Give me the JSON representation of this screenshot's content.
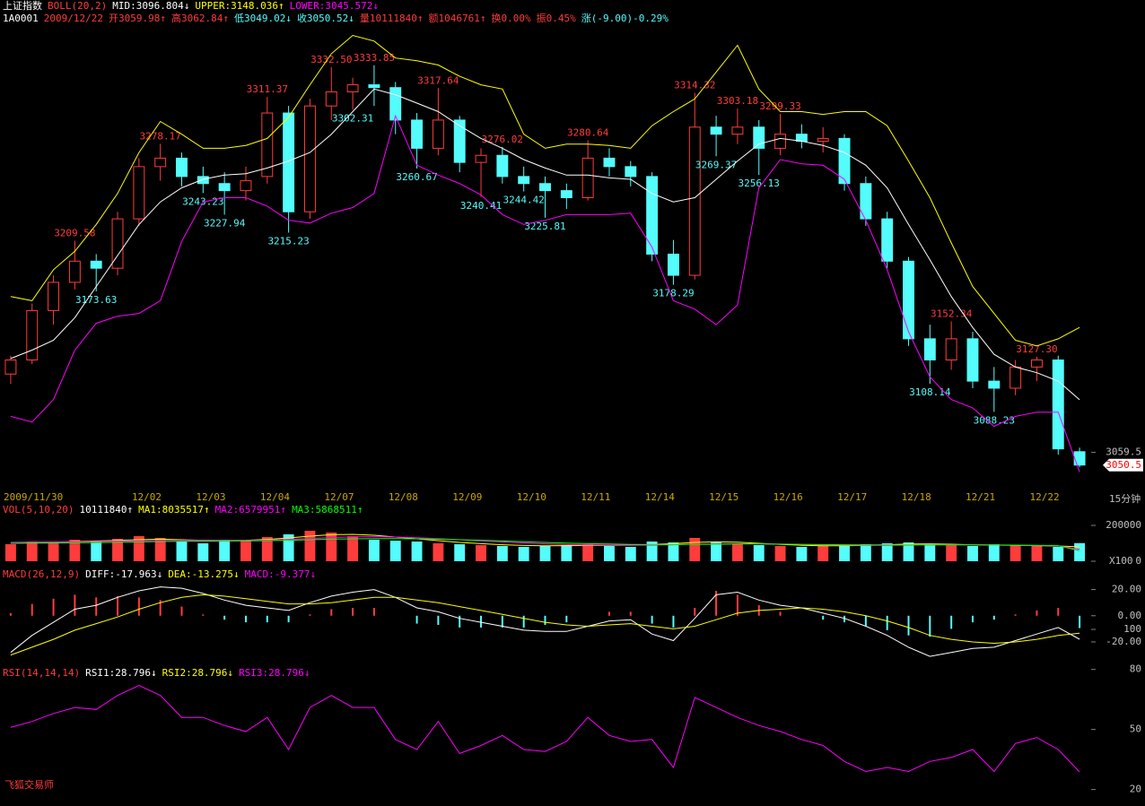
{
  "footer": "飞狐交易师",
  "chart_data": [
    {
      "type": "candlestick",
      "header": [
        [
          {
            "text": "上证指数",
            "color": "#ffffff"
          },
          {
            "text": "BOLL(20,2)",
            "color": "#ff3c3c"
          },
          {
            "text": "MID:3096.804↓",
            "color": "#ffffff"
          },
          {
            "text": "UPPER:3148.036↑",
            "color": "#ffff00"
          },
          {
            "text": "LOWER:3045.572↓",
            "color": "#ff00ff"
          }
        ],
        [
          {
            "text": "1A0001",
            "color": "#ffffff"
          },
          {
            "text": "2009/12/22",
            "color": "#ff3c3c"
          },
          {
            "text": "开3059.98↑",
            "color": "#ff3c3c"
          },
          {
            "text": "高3062.84↑",
            "color": "#ff3c3c"
          },
          {
            "text": "低3049.02↓",
            "color": "#54fcfc"
          },
          {
            "text": "收3050.52↓",
            "color": "#54fcfc"
          },
          {
            "text": "量10111840↑",
            "color": "#ff3c3c"
          },
          {
            "text": "额1046761↑",
            "color": "#ff3c3c"
          },
          {
            "text": "换0.00%",
            "color": "#ff3c3c"
          },
          {
            "text": "振0.45%",
            "color": "#ff3c3c"
          },
          {
            "text": "涨(-9.00)-0.29%",
            "color": "#54fcfc"
          }
        ]
      ],
      "categories": [
        "2009/11/30",
        null,
        null,
        null,
        null,
        null,
        "12/02",
        null,
        null,
        "12/03",
        null,
        null,
        "12/04",
        null,
        null,
        "12/07",
        null,
        null,
        "12/08",
        null,
        null,
        "12/09",
        null,
        null,
        "12/10",
        null,
        null,
        "12/11",
        null,
        null,
        "12/14",
        null,
        null,
        "12/15",
        null,
        null,
        "12/16",
        null,
        null,
        "12/17",
        null,
        null,
        "12/18",
        null,
        null,
        "12/21",
        null,
        null,
        "12/22",
        null,
        null
      ],
      "x_unit_label": "15分钟",
      "up_color": "#ff3c3c",
      "down_color": "#54fcfc",
      "open": [
        3115,
        3125,
        3160,
        3180,
        3195,
        3190,
        3225,
        3262,
        3268,
        3255,
        3250,
        3245,
        3255,
        3300,
        3230,
        3305,
        3315,
        3320,
        3318,
        3295,
        3275,
        3295,
        3265,
        3270,
        3255,
        3250,
        3245,
        3240,
        3268,
        3262,
        3255,
        3200,
        3185,
        3290,
        3285,
        3290,
        3275,
        3285,
        3280,
        3282,
        3250,
        3225,
        3195,
        3140,
        3125,
        3140,
        3110,
        3105,
        3120,
        3125,
        3059.98
      ],
      "high": [
        3128,
        3165,
        3185,
        3209.58,
        3200,
        3230,
        3268,
        3278.17,
        3272,
        3262,
        3258,
        3262,
        3311.37,
        3305,
        3310,
        3332.5,
        3325,
        3333.85,
        3322,
        3300,
        3317.64,
        3298,
        3275,
        3276.02,
        3262,
        3255,
        3250,
        3280.64,
        3275,
        3266,
        3258,
        3210,
        3314.32,
        3298,
        3303.18,
        3295,
        3299.33,
        3292,
        3290,
        3285,
        3255,
        3230,
        3198,
        3150,
        3152.34,
        3145,
        3120,
        3125,
        3127.3,
        3128,
        3062.84
      ],
      "low": [
        3108,
        3122,
        3150,
        3175,
        3173.63,
        3185,
        3220,
        3252,
        3248,
        3243.23,
        3227.94,
        3238,
        3250,
        3215.23,
        3225,
        3295,
        3302.31,
        3305,
        3285,
        3260.67,
        3270,
        3258,
        3240.41,
        3250,
        3244.42,
        3225.81,
        3232,
        3238,
        3255,
        3248,
        3195,
        3178.29,
        3182,
        3269.37,
        3278,
        3256.13,
        3270,
        3275,
        3272,
        3245,
        3220,
        3190,
        3135,
        3108.14,
        3118,
        3105,
        3088.23,
        3100,
        3110,
        3058,
        3049.02
      ],
      "close": [
        3125,
        3160,
        3180,
        3195,
        3190,
        3225,
        3262,
        3268,
        3255,
        3250,
        3245,
        3252,
        3300,
        3230,
        3305,
        3315,
        3320,
        3318,
        3295,
        3275,
        3295,
        3265,
        3270,
        3255,
        3250,
        3245,
        3240,
        3268,
        3262,
        3255,
        3200,
        3185,
        3290,
        3285,
        3290,
        3275,
        3285,
        3280,
        3282,
        3250,
        3225,
        3195,
        3140,
        3125,
        3140,
        3110,
        3105,
        3120,
        3125,
        3062,
        3050.52
      ],
      "high_labels": [
        null,
        null,
        null,
        "3209.58",
        null,
        null,
        null,
        "3278.17",
        null,
        null,
        null,
        null,
        "3311.37",
        null,
        null,
        "3332.50",
        null,
        "3333.85",
        null,
        null,
        "3317.64",
        null,
        null,
        "3276.02",
        null,
        null,
        null,
        "3280.64",
        null,
        null,
        null,
        null,
        "3314.32",
        null,
        "3303.18",
        null,
        "3299.33",
        null,
        null,
        null,
        null,
        null,
        null,
        null,
        "3152.34",
        null,
        null,
        null,
        "3127.30",
        null,
        null
      ],
      "low_labels": [
        null,
        null,
        null,
        null,
        "3173.63",
        null,
        null,
        null,
        null,
        "3243.23",
        "3227.94",
        null,
        null,
        "3215.23",
        null,
        null,
        "3302.31",
        null,
        null,
        "3260.67",
        null,
        null,
        "3240.41",
        null,
        "3244.42",
        "3225.81",
        null,
        null,
        null,
        null,
        null,
        "3178.29",
        null,
        "3269.37",
        null,
        "3256.13",
        null,
        null,
        null,
        null,
        null,
        null,
        null,
        "3108.14",
        null,
        null,
        "3088.23",
        null,
        null,
        null,
        null
      ],
      "series": [
        {
          "color": "#ffffff",
          "values": [
            3126,
            3132,
            3139,
            3155,
            3177,
            3199,
            3221,
            3237,
            3247,
            3253,
            3256,
            3257,
            3261,
            3266,
            3272,
            3285,
            3301,
            3317,
            3313,
            3307,
            3301,
            3291,
            3282,
            3275,
            3267,
            3261,
            3256,
            3256,
            3254,
            3253,
            3243,
            3237,
            3240,
            3253,
            3266,
            3278,
            3282,
            3280,
            3277,
            3272,
            3263,
            3247,
            3221,
            3196,
            3170,
            3148,
            3129,
            3120,
            3116,
            3110,
            3096.804
          ]
        },
        {
          "color": "#ffff00",
          "values": [
            3170,
            3167,
            3189,
            3202,
            3221,
            3243,
            3272,
            3294,
            3285,
            3275,
            3275,
            3277,
            3282,
            3297,
            3320,
            3342,
            3355,
            3351,
            3339,
            3337,
            3334,
            3326,
            3320,
            3317,
            3285,
            3275,
            3278,
            3278,
            3277,
            3275,
            3291,
            3301,
            3310,
            3329,
            3348,
            3317,
            3301,
            3301,
            3299,
            3301,
            3301,
            3291,
            3266,
            3240,
            3208,
            3177,
            3158,
            3139,
            3135,
            3140,
            3148.036
          ]
        },
        {
          "color": "#ff00ff",
          "values": [
            3085,
            3081,
            3097,
            3132,
            3151,
            3156,
            3158,
            3167,
            3209,
            3237,
            3240,
            3240,
            3234,
            3224,
            3222,
            3229,
            3233,
            3243,
            3298,
            3263,
            3256,
            3250,
            3242,
            3228,
            3221,
            3224,
            3228,
            3228,
            3228,
            3229,
            3205,
            3167,
            3161,
            3150,
            3164,
            3247,
            3267,
            3264,
            3263,
            3253,
            3224,
            3189,
            3145,
            3113,
            3097,
            3091,
            3078,
            3085,
            3088,
            3088,
            3045.572
          ]
        }
      ],
      "ylim": [
        3037,
        3375
      ],
      "yticks": [
        3059.5
      ],
      "last_price": 3050.5
    },
    {
      "type": "bar",
      "header": [
        [
          {
            "text": "VOL(5,10,20)",
            "color": "#ff3c3c"
          },
          {
            "text": "10111840↑",
            "color": "#ffffff"
          },
          {
            "text": "MA1:8035517↑",
            "color": "#ffff00"
          },
          {
            "text": "MA2:6579951↑",
            "color": "#ff00ff"
          },
          {
            "text": "MA3:5868511↑",
            "color": "#00ff00"
          }
        ]
      ],
      "values": [
        95000,
        110000,
        105000,
        120000,
        115000,
        125000,
        140000,
        130000,
        110000,
        100000,
        120000,
        115000,
        135000,
        150000,
        170000,
        160000,
        140000,
        120000,
        115000,
        110000,
        100000,
        95000,
        90000,
        85000,
        80000,
        85000,
        90000,
        95000,
        85000,
        80000,
        110000,
        105000,
        130000,
        110000,
        100000,
        90000,
        85000,
        80000,
        85000,
        90000,
        95000,
        100000,
        105000,
        95000,
        90000,
        85000,
        95000,
        90000,
        85000,
        80000,
        101118.4
      ],
      "series": [
        {
          "color": "#ffff00",
          "values": [
            100000,
            103000,
            106000,
            110000,
            113000,
            116000,
            120000,
            123000,
            120000,
            117000,
            115000,
            117000,
            122000,
            130000,
            140000,
            148000,
            150000,
            145000,
            135000,
            125000,
            115000,
            105000,
            98000,
            92000,
            88000,
            86000,
            87000,
            88000,
            88000,
            90000,
            94000,
            98000,
            105000,
            108000,
            106000,
            100000,
            94000,
            89000,
            86000,
            86000,
            88000,
            92000,
            96000,
            97000,
            95000,
            92000,
            90000,
            89000,
            87000,
            85000,
            80355.17
          ]
        },
        {
          "color": "#ff00ff",
          "values": [
            105000,
            106000,
            107000,
            108000,
            110000,
            112000,
            114000,
            116000,
            117000,
            117000,
            116000,
            116000,
            118000,
            122000,
            127000,
            132000,
            136000,
            137000,
            135000,
            131000,
            126000,
            120000,
            114000,
            108000,
            102000,
            97000,
            93000,
            91000,
            90000,
            89000,
            90000,
            92000,
            95000,
            97000,
            98000,
            97000,
            96000,
            94000,
            92000,
            90000,
            89000,
            89000,
            90000,
            91000,
            92000,
            92000,
            91000,
            90000,
            88000,
            86000,
            65799.51
          ]
        },
        {
          "color": "#00ff00",
          "values": [
            100000,
            101000,
            102000,
            103000,
            104000,
            106000,
            108000,
            110000,
            111000,
            112000,
            113000,
            114000,
            115000,
            117000,
            120000,
            123000,
            125000,
            126000,
            126000,
            125000,
            123000,
            120000,
            117000,
            113000,
            109000,
            105000,
            101000,
            98000,
            96000,
            94000,
            93000,
            93000,
            94000,
            95000,
            96000,
            96000,
            95000,
            94000,
            93000,
            92000,
            91000,
            91000,
            91000,
            91000,
            91000,
            91000,
            90000,
            90000,
            89000,
            87000,
            58685.11
          ]
        }
      ],
      "ylim": [
        0,
        200000
      ],
      "yticks": [
        200000,
        0
      ],
      "y_unit_label": "X100"
    },
    {
      "type": "macd",
      "header": [
        [
          {
            "text": "MACD(26,12,9)",
            "color": "#ff3c3c"
          },
          {
            "text": "DIFF:-17.963↓",
            "color": "#ffffff"
          },
          {
            "text": "DEA:-13.275↓",
            "color": "#ffff00"
          },
          {
            "text": "MACD:-9.377↓",
            "color": "#ff00ff"
          }
        ]
      ],
      "up_color": "#ff3c3c",
      "down_color": "#54fcfc",
      "values": [
        2,
        9,
        13,
        16,
        14,
        15,
        14,
        12,
        7,
        1,
        -3,
        -5,
        -5,
        -5,
        1,
        5,
        6,
        6,
        0,
        -6,
        -7,
        -9,
        -9,
        -9,
        -9,
        -7,
        -5,
        0,
        3,
        3,
        -6,
        -9,
        6,
        19,
        16,
        8,
        3,
        0,
        -3,
        -5,
        -8,
        -11,
        -15,
        -16,
        -10,
        -5,
        -3,
        1,
        4,
        6,
        -9.377
      ],
      "series": [
        {
          "color": "#ffffff",
          "values": [
            -28,
            -15,
            -5,
            5,
            8,
            14,
            19,
            22,
            21,
            17,
            12,
            8,
            6,
            4,
            10,
            15,
            18,
            20,
            14,
            6,
            3,
            -2,
            -5,
            -8,
            -11,
            -12,
            -12,
            -8,
            -4,
            -3,
            -14,
            -19,
            -2,
            16,
            18,
            12,
            8,
            6,
            2,
            -2,
            -8,
            -15,
            -24,
            -31,
            -28,
            -25,
            -24,
            -19,
            -14,
            -9,
            -17.963
          ]
        },
        {
          "color": "#ffff00",
          "values": [
            -30,
            -24,
            -18,
            -11,
            -6,
            -1,
            5,
            10,
            14,
            16,
            15,
            13,
            11,
            9,
            9,
            10,
            12,
            14,
            14,
            12,
            10,
            7,
            4,
            1,
            -2,
            -5,
            -7,
            -8,
            -7,
            -6,
            -8,
            -10,
            -8,
            -3,
            2,
            4,
            5,
            6,
            5,
            3,
            0,
            -4,
            -9,
            -15,
            -18,
            -20,
            -21,
            -20,
            -18,
            -15,
            -13.275
          ]
        }
      ],
      "ylim": [
        -33,
        28.6
      ],
      "yticks": [
        {
          "value": 20,
          "label": "20.00"
        },
        {
          "value": 0,
          "label": "0.00"
        },
        {
          "value": -20,
          "label": "-20.00"
        }
      ]
    },
    {
      "type": "line",
      "header": [
        [
          {
            "text": "RSI(14,14,14)",
            "color": "#ff3c3c"
          },
          {
            "text": "RSI1:28.796↓",
            "color": "#ffffff"
          },
          {
            "text": "RSI2:28.796↓",
            "color": "#ffff00"
          },
          {
            "text": "RSI3:28.796↓",
            "color": "#ff00ff"
          }
        ]
      ],
      "series": [
        {
          "color": "#ff00ff",
          "values": [
            51,
            54,
            58,
            61,
            60,
            67,
            72,
            67,
            56,
            56,
            52,
            49,
            56,
            40,
            61,
            67,
            61,
            61,
            45,
            40,
            54,
            38,
            42,
            47,
            40,
            39,
            44,
            56,
            47,
            44,
            45,
            31,
            66,
            61,
            56,
            52,
            49,
            45,
            42,
            34,
            29,
            31,
            29,
            34,
            36,
            40,
            29,
            43,
            46,
            40,
            28.796
          ]
        }
      ],
      "ylim": [
        14,
        100
      ],
      "yticks": [
        100,
        80,
        50,
        20
      ]
    }
  ]
}
